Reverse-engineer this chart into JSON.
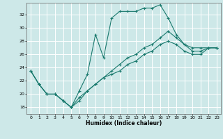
{
  "xlabel": "Humidex (Indice chaleur)",
  "bg_color": "#cde8e8",
  "grid_color": "#ffffff",
  "line_color": "#1a7a6e",
  "xlim": [
    -0.5,
    23.5
  ],
  "ylim": [
    17.0,
    33.8
  ],
  "xticks": [
    0,
    1,
    2,
    3,
    4,
    5,
    6,
    7,
    8,
    9,
    10,
    11,
    12,
    13,
    14,
    15,
    16,
    17,
    18,
    19,
    20,
    21,
    22,
    23
  ],
  "yticks": [
    18,
    20,
    22,
    24,
    26,
    28,
    30,
    32
  ],
  "line1_x": [
    0,
    1,
    2,
    3,
    4,
    5,
    6,
    7,
    8,
    9,
    10,
    11,
    12,
    13,
    14,
    15,
    16,
    17,
    18,
    19,
    20,
    21,
    22,
    23
  ],
  "line1_y": [
    23.5,
    21.5,
    20.0,
    20.0,
    19.0,
    18.0,
    20.5,
    23.0,
    29.0,
    25.5,
    31.5,
    32.5,
    32.5,
    32.5,
    33.0,
    33.0,
    33.5,
    31.5,
    29.0,
    27.5,
    27.0,
    27.0,
    27.0,
    27.0
  ],
  "line2_x": [
    0,
    1,
    2,
    3,
    4,
    5,
    6,
    7,
    8,
    9,
    10,
    11,
    12,
    13,
    14,
    15,
    16,
    17,
    18,
    19,
    20,
    21,
    22,
    23
  ],
  "line2_y": [
    23.5,
    21.5,
    20.0,
    20.0,
    19.0,
    18.0,
    19.0,
    20.5,
    21.5,
    22.5,
    23.5,
    24.5,
    25.5,
    26.0,
    27.0,
    27.5,
    28.5,
    29.5,
    28.5,
    27.5,
    26.5,
    26.5,
    27.0,
    27.0
  ],
  "line3_x": [
    0,
    1,
    2,
    3,
    4,
    5,
    6,
    7,
    8,
    9,
    10,
    11,
    12,
    13,
    14,
    15,
    16,
    17,
    18,
    19,
    20,
    21,
    22,
    23
  ],
  "line3_y": [
    23.5,
    21.5,
    20.0,
    20.0,
    19.0,
    18.0,
    19.5,
    20.5,
    21.5,
    22.5,
    23.0,
    23.5,
    24.5,
    25.0,
    26.0,
    26.5,
    27.5,
    28.0,
    27.5,
    26.5,
    26.0,
    26.0,
    27.0,
    27.0
  ]
}
